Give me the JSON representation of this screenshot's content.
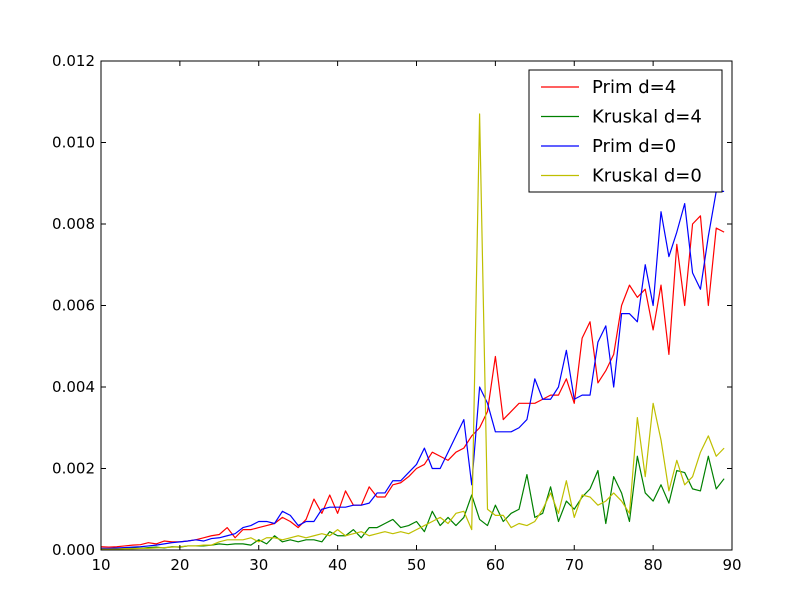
{
  "chart_data": {
    "type": "line",
    "title": "",
    "xlabel": "",
    "ylabel": "",
    "xlim": [
      10,
      90
    ],
    "ylim": [
      0,
      0.012
    ],
    "grid": false,
    "legend_position": "top-right",
    "x_ticks": [
      10,
      20,
      30,
      40,
      50,
      60,
      70,
      80,
      90
    ],
    "x_tick_labels": [
      "10",
      "20",
      "30",
      "40",
      "50",
      "60",
      "70",
      "80",
      "90"
    ],
    "y_ticks": [
      0,
      0.002,
      0.004,
      0.006,
      0.008,
      0.01,
      0.012
    ],
    "y_tick_labels": [
      "0.000",
      "0.002",
      "0.004",
      "0.006",
      "0.008",
      "0.010",
      "0.012"
    ],
    "x": [
      10,
      11,
      12,
      13,
      14,
      15,
      16,
      17,
      18,
      19,
      20,
      21,
      22,
      23,
      24,
      25,
      26,
      27,
      28,
      29,
      30,
      31,
      32,
      33,
      34,
      35,
      36,
      37,
      38,
      39,
      40,
      41,
      42,
      43,
      44,
      45,
      46,
      47,
      48,
      49,
      50,
      51,
      52,
      53,
      54,
      55,
      56,
      57,
      58,
      59,
      60,
      61,
      62,
      63,
      64,
      65,
      66,
      67,
      68,
      69,
      70,
      71,
      72,
      73,
      74,
      75,
      76,
      77,
      78,
      79,
      80,
      81,
      82,
      83,
      84,
      85,
      86,
      87,
      88,
      89
    ],
    "series": [
      {
        "name": "Prim d=4",
        "color": "#ff0000",
        "values": [
          8e-05,
          7e-05,
          8e-05,
          0.0001,
          0.00012,
          0.00013,
          0.00018,
          0.00015,
          0.00022,
          0.0002,
          0.0002,
          0.00022,
          0.00025,
          0.0003,
          0.00035,
          0.00038,
          0.00055,
          0.0003,
          0.0005,
          0.0005,
          0.00055,
          0.0006,
          0.00065,
          0.0008,
          0.0007,
          0.00055,
          0.00075,
          0.00125,
          0.0009,
          0.00135,
          0.0009,
          0.00145,
          0.0011,
          0.0011,
          0.00155,
          0.0013,
          0.0013,
          0.0016,
          0.00165,
          0.0018,
          0.002,
          0.0021,
          0.0024,
          0.0023,
          0.0022,
          0.0024,
          0.0025,
          0.0028,
          0.003,
          0.0034,
          0.00475,
          0.0032,
          0.0034,
          0.0036,
          0.0036,
          0.0036,
          0.0037,
          0.0038,
          0.0038,
          0.0042,
          0.0036,
          0.0052,
          0.0056,
          0.0041,
          0.0044,
          0.0048,
          0.006,
          0.0065,
          0.0062,
          0.0064,
          0.0054,
          0.0065,
          0.0048,
          0.0075,
          0.006,
          0.008,
          0.0082,
          0.006,
          0.0079,
          0.0078
        ]
      },
      {
        "name": "Kruskal d=4",
        "color": "#008000",
        "values": [
          3e-05,
          3e-05,
          3e-05,
          4e-05,
          5e-05,
          4e-05,
          6e-05,
          7e-05,
          5e-05,
          8e-05,
          7e-05,
          0.0001,
          0.0001,
          0.0001,
          0.00012,
          0.00015,
          0.00013,
          0.00015,
          0.00015,
          0.00012,
          0.00025,
          0.00015,
          0.00035,
          0.0002,
          0.00025,
          0.0002,
          0.00025,
          0.00025,
          0.0002,
          0.00045,
          0.00035,
          0.00035,
          0.0005,
          0.0003,
          0.00055,
          0.00055,
          0.00065,
          0.00075,
          0.00055,
          0.0006,
          0.0007,
          0.00045,
          0.00095,
          0.0006,
          0.0008,
          0.0006,
          0.0008,
          0.00135,
          0.00075,
          0.0006,
          0.0011,
          0.0007,
          0.0009,
          0.001,
          0.00185,
          0.0008,
          0.0009,
          0.00155,
          0.0007,
          0.0012,
          0.001,
          0.0013,
          0.0015,
          0.00195,
          0.00065,
          0.0018,
          0.0014,
          0.0007,
          0.0023,
          0.0014,
          0.0012,
          0.0016,
          0.00115,
          0.00195,
          0.0019,
          0.0015,
          0.00145,
          0.0023,
          0.0015,
          0.00175
        ]
      },
      {
        "name": "Prim d=0",
        "color": "#0000ff",
        "values": [
          4e-05,
          4e-05,
          5e-05,
          6e-05,
          7e-05,
          8e-05,
          0.0001,
          0.00012,
          0.00015,
          0.00018,
          0.0002,
          0.00022,
          0.00025,
          0.00022,
          0.00028,
          0.0003,
          0.00035,
          0.0004,
          0.00055,
          0.0006,
          0.0007,
          0.0007,
          0.00065,
          0.00095,
          0.00085,
          0.0006,
          0.0007,
          0.0007,
          0.001,
          0.00105,
          0.00105,
          0.00105,
          0.0011,
          0.0011,
          0.00115,
          0.0014,
          0.0014,
          0.0017,
          0.0017,
          0.0019,
          0.0021,
          0.0025,
          0.002,
          0.002,
          0.0024,
          0.0028,
          0.0032,
          0.0016,
          0.004,
          0.0036,
          0.0029,
          0.0029,
          0.0029,
          0.003,
          0.0032,
          0.0042,
          0.0037,
          0.0037,
          0.004,
          0.0049,
          0.0037,
          0.0038,
          0.0038,
          0.0051,
          0.0055,
          0.004,
          0.0058,
          0.0058,
          0.0056,
          0.007,
          0.006,
          0.0083,
          0.0072,
          0.0078,
          0.0085,
          0.0068,
          0.0064,
          0.0077,
          0.0088,
          0.0088
        ]
      },
      {
        "name": "Kruskal d=0",
        "color": "#bfbf00",
        "values": [
          2e-05,
          2e-05,
          2e-05,
          3e-05,
          3e-05,
          4e-05,
          4e-05,
          5e-05,
          6e-05,
          7e-05,
          8e-05,
          0.0001,
          0.0001,
          0.00012,
          0.00012,
          0.0002,
          0.00025,
          0.00025,
          0.00025,
          0.0003,
          0.0002,
          0.0003,
          0.0003,
          0.00025,
          0.0003,
          0.00035,
          0.0003,
          0.00035,
          0.0004,
          0.00035,
          0.0005,
          0.00035,
          0.0004,
          0.00045,
          0.00035,
          0.0004,
          0.00045,
          0.0004,
          0.00045,
          0.0004,
          0.0005,
          0.0006,
          0.0007,
          0.0008,
          0.00065,
          0.0009,
          0.00095,
          0.0005,
          0.0107,
          0.001,
          0.00085,
          0.00085,
          0.00055,
          0.00065,
          0.0006,
          0.0007,
          0.001,
          0.0014,
          0.0009,
          0.0017,
          0.0008,
          0.00135,
          0.0013,
          0.0011,
          0.0012,
          0.0014,
          0.0012,
          0.0009,
          0.00325,
          0.0018,
          0.0036,
          0.0027,
          0.00145,
          0.0022,
          0.0016,
          0.0018,
          0.0024,
          0.0028,
          0.0023,
          0.0025
        ]
      }
    ]
  }
}
